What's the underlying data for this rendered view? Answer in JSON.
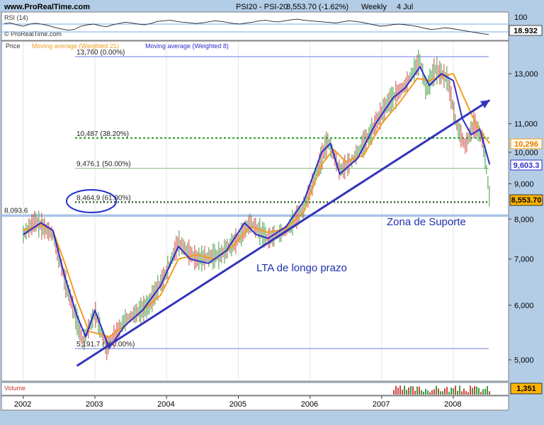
{
  "header": {
    "site": "www.ProRealTime.com",
    "instrument": "PSI20 - PSI-20",
    "price_change": "8,553.70 (-1.62%)",
    "period": "Weekly",
    "date": "4 Jul"
  },
  "rsi_panel": {
    "label": "RSI (14)",
    "watermark": "© ProRealTime.com",
    "scale_top": "100",
    "current": "18.932",
    "overbought": 70,
    "oversold": 30,
    "values": [
      60,
      62,
      55,
      50,
      58,
      61,
      57,
      52,
      45,
      40,
      35,
      38,
      50,
      55,
      58,
      52,
      48,
      55,
      60,
      65,
      62,
      58,
      55,
      60,
      68,
      70,
      72,
      68,
      65,
      63,
      60,
      62,
      66,
      70,
      68,
      64,
      60,
      58,
      62,
      65,
      70,
      72,
      68,
      66,
      70,
      74,
      76,
      72,
      70,
      68,
      66,
      64,
      62,
      66,
      70,
      68,
      65,
      60,
      55,
      50,
      52,
      56,
      58,
      55,
      52,
      48,
      42,
      38,
      40,
      44,
      42,
      38,
      34,
      30,
      26,
      22,
      19
    ]
  },
  "price_panel": {
    "legend": {
      "price": "Price",
      "ma21": "Moving average (Weighted 21)",
      "ma8": "Moving average (Weighted 8)"
    },
    "fib_levels": [
      {
        "label": "13,760 (0.00%)",
        "value": 13760,
        "style": "solid"
      },
      {
        "label": "10,487 (38.20%)",
        "value": 10487,
        "style": "dotted-green"
      },
      {
        "label": "9,476.1 (50.00%)",
        "value": 9476.1,
        "style": "solid-green"
      },
      {
        "label": "8,464.9 (61.80%)",
        "value": 8464.9,
        "style": "dotted-dark"
      },
      {
        "label": "5,191.7 (100.00%)",
        "value": 5191.7,
        "style": "solid"
      }
    ],
    "support": {
      "label": "8,093.6",
      "value": 8093.6
    },
    "annotations": {
      "support_zone": "Zona de Suporte",
      "trendline": "LTA de longo prazo"
    },
    "y_ticks": [
      "13,000",
      "11,000",
      "10,000",
      "9,000",
      "8,000",
      "7,000",
      "6,000",
      "5,000"
    ],
    "price_badges": {
      "ma21": "10,296",
      "ma8": "9,603.3",
      "last": "8,553.70"
    }
  },
  "volume_panel": {
    "label": "Volume",
    "current": "1,351"
  },
  "x_axis": {
    "labels": [
      "2002",
      "2003",
      "2004",
      "2005",
      "2006",
      "2007",
      "2008"
    ]
  },
  "colors": {
    "background": "#b4cde6",
    "panel": "#ffffff",
    "price_up": "#3f9a3f",
    "price_down": "#d04545",
    "ma21": "#f39c1f",
    "ma8": "#2f2fc8",
    "trendline": "#3333bb",
    "fib": "#3a8a3a",
    "support": "#a8c4e8",
    "annotation": "#1f2fae"
  },
  "chart_data": {
    "type": "line",
    "title": "PSI20 - PSI-20",
    "xlabel": "",
    "ylabel": "",
    "y_scale": "log",
    "ylim": [
      4700,
      14800
    ],
    "x_range": [
      "2002-01-01",
      "2008-07-04"
    ],
    "series": [
      {
        "name": "Moving average (Weighted 8)",
        "x": [
          "2002-01-01",
          "2002-04-01",
          "2002-06-01",
          "2002-08-01",
          "2002-10-01",
          "2002-11-15",
          "2003-01-01",
          "2003-03-15",
          "2003-06-01",
          "2003-09-01",
          "2003-12-01",
          "2004-03-01",
          "2004-05-01",
          "2004-08-01",
          "2004-11-01",
          "2005-02-01",
          "2005-04-01",
          "2005-06-01",
          "2005-09-01",
          "2005-12-01",
          "2006-03-01",
          "2006-04-15",
          "2006-06-01",
          "2006-09-01",
          "2006-12-01",
          "2007-03-01",
          "2007-05-01",
          "2007-07-15",
          "2007-09-01",
          "2007-11-01",
          "2008-01-01",
          "2008-02-15",
          "2008-04-01",
          "2008-05-15",
          "2008-07-04"
        ],
        "values": [
          7600,
          7900,
          7700,
          6600,
          5800,
          5400,
          5900,
          5200,
          5600,
          5900,
          6400,
          7300,
          7000,
          6900,
          7200,
          7900,
          7600,
          7500,
          7800,
          8500,
          10000,
          10300,
          9300,
          9800,
          11000,
          12000,
          12400,
          13300,
          12500,
          13000,
          12700,
          11200,
          10600,
          10800,
          9600
        ]
      },
      {
        "name": "Moving average (Weighted 21)",
        "x": [
          "2002-01-01",
          "2002-04-01",
          "2002-06-01",
          "2002-08-01",
          "2002-10-01",
          "2002-12-01",
          "2003-03-15",
          "2003-06-01",
          "2003-09-01",
          "2003-12-01",
          "2004-03-01",
          "2004-06-01",
          "2004-09-01",
          "2004-12-01",
          "2005-03-01",
          "2005-06-01",
          "2005-09-01",
          "2005-12-01",
          "2006-03-01",
          "2006-05-01",
          "2006-07-01",
          "2006-10-01",
          "2007-01-01",
          "2007-04-01",
          "2007-07-01",
          "2007-09-01",
          "2007-11-01",
          "2008-01-01",
          "2008-03-01",
          "2008-05-01",
          "2008-07-04"
        ],
        "values": [
          7700,
          7850,
          7700,
          6900,
          6100,
          5500,
          5400,
          5600,
          5900,
          6200,
          7000,
          7100,
          7000,
          7300,
          7800,
          7650,
          7750,
          8200,
          9600,
          10100,
          9700,
          9900,
          11000,
          11800,
          12800,
          12700,
          12900,
          13000,
          11900,
          10900,
          10296
        ]
      },
      {
        "name": "Price",
        "x": [
          "2002-01-01",
          "2002-03-01",
          "2002-06-01",
          "2002-08-01",
          "2002-10-01",
          "2002-11-01",
          "2003-01-01",
          "2003-03-01",
          "2003-06-01",
          "2003-10-01",
          "2004-01-01",
          "2004-03-01",
          "2004-06-01",
          "2004-10-01",
          "2005-01-01",
          "2005-03-01",
          "2005-06-01",
          "2005-09-01",
          "2005-12-01",
          "2006-02-01",
          "2006-04-01",
          "2006-06-01",
          "2006-08-01",
          "2006-11-01",
          "2007-02-01",
          "2007-05-01",
          "2007-07-15",
          "2007-08-15",
          "2007-10-01",
          "2007-12-01",
          "2008-01-15",
          "2008-03-01",
          "2008-04-15",
          "2008-06-01",
          "2008-07-04"
        ],
        "values": [
          7600,
          7950,
          7600,
          6500,
          5700,
          5300,
          5850,
          5200,
          5700,
          6000,
          6700,
          7400,
          7000,
          7100,
          7500,
          7900,
          7500,
          7700,
          8300,
          9300,
          10400,
          9400,
          9700,
          10600,
          11800,
          12500,
          13600,
          12300,
          13200,
          12800,
          11000,
          10200,
          11000,
          10400,
          8553.7
        ]
      }
    ],
    "trendline": {
      "x": [
        "2002-10-01",
        "2008-07-04"
      ],
      "y": [
        4900,
        11900
      ]
    },
    "volume": {
      "current": 1351
    }
  }
}
